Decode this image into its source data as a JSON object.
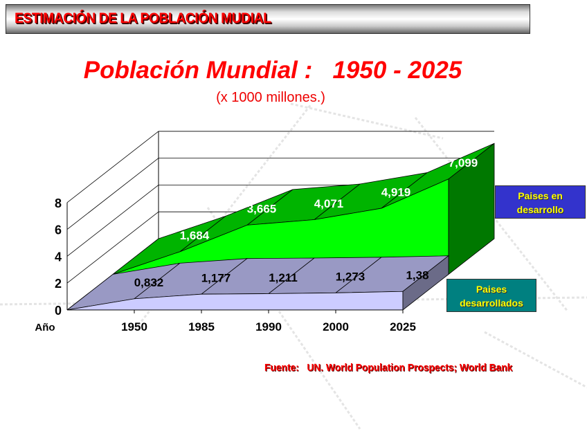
{
  "header": {
    "title": "ESTIMACIÓN DE LA POBLACIÓN MUDIAL"
  },
  "source": "Fuente:   UN. World Population Prospects; World Bank",
  "colors": {
    "accent": "#ff0000",
    "developing_top": "#00b400",
    "developing_front": "#00ff00",
    "developing_side": "#007800",
    "developed_top": "#9999c4",
    "developed_front": "#ccccff",
    "developed_side": "#6b6b88"
  },
  "chart_data": {
    "type": "area",
    "variant": "3d",
    "title": "Población Mundial :   1950 - 2025",
    "subtitle": "(x 1000 millones.)",
    "xlabel": "Año",
    "ylabel": "",
    "categories": [
      "1950",
      "1985",
      "1990",
      "2000",
      "2025"
    ],
    "yticks": [
      "0",
      "2",
      "4",
      "6",
      "8"
    ],
    "ylim": [
      0,
      8
    ],
    "grid": true,
    "legend_position": "right",
    "series": [
      {
        "name": "Paises desarrollados",
        "values": [
          0.832,
          1.177,
          1.211,
          1.273,
          1.38
        ],
        "labels": [
          "0,832",
          "1,177",
          "1,211",
          "1,273",
          "1,38"
        ]
      },
      {
        "name": "Paises en desarrollo",
        "values": [
          1.684,
          3.665,
          4.071,
          4.919,
          7.099
        ],
        "labels": [
          "1,684",
          "3,665",
          "4,071",
          "4,919",
          "7,099"
        ]
      }
    ],
    "legend": {
      "developing_line1": "Paises en",
      "developing_line2": "desarrollo",
      "developed_line1": "Paises",
      "developed_line2": "desarrollados"
    }
  }
}
